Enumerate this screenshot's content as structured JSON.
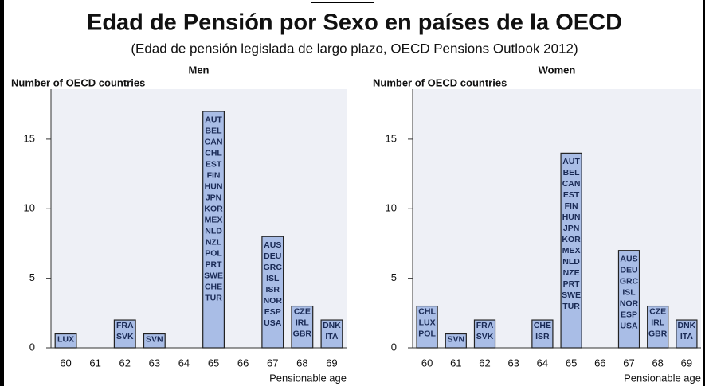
{
  "header": {
    "title": "Edad de Pensión por Sexo en países de la OECD",
    "subtitle": "(Edad de pensión legislada de largo plazo, OECD Pensions Outlook 2012)"
  },
  "chart_data": [
    {
      "type": "bar",
      "title": "Men",
      "ylabel": "Number of OECD countries",
      "xlabel": "Pensionable age",
      "categories": [
        60,
        61,
        62,
        63,
        64,
        65,
        66,
        67,
        68,
        69
      ],
      "values": [
        1,
        0,
        2,
        1,
        0,
        17,
        0,
        8,
        3,
        2
      ],
      "bar_labels": [
        [
          "LUX"
        ],
        [],
        [
          "FRA",
          "SVK"
        ],
        [
          "SVN"
        ],
        [],
        [
          "AUT",
          "BEL",
          "CAN",
          "CHL",
          "EST",
          "FIN",
          "HUN",
          "JPN",
          "KOR",
          "MEX",
          "NLD",
          "NZL",
          "POL",
          "PRT",
          "SWE",
          "CHE",
          "TUR"
        ],
        [],
        [
          "AUS",
          "DEU",
          "GRC",
          "ISL",
          "ISR",
          "NOR",
          "ESP",
          "USA"
        ],
        [
          "CZE",
          "IRL",
          "GBR"
        ],
        [
          "DNK",
          "ITA"
        ]
      ],
      "ylim": [
        0,
        18.6
      ],
      "yticks": [
        0,
        5,
        10,
        15
      ],
      "color": "#a9bde6"
    },
    {
      "type": "bar",
      "title": "Women",
      "ylabel": "Number of OECD countries",
      "xlabel": "Pensionable age",
      "categories": [
        60,
        61,
        62,
        63,
        64,
        65,
        66,
        67,
        68,
        69
      ],
      "values": [
        3,
        1,
        2,
        0,
        2,
        14,
        0,
        7,
        3,
        2
      ],
      "bar_labels": [
        [
          "CHL",
          "LUX",
          "POL"
        ],
        [
          "SVN"
        ],
        [
          "FRA",
          "SVK"
        ],
        [],
        [
          "CHE",
          "ISR"
        ],
        [
          "AUT",
          "BEL",
          "CAN",
          "EST",
          "FIN",
          "HUN",
          "JPN",
          "KOR",
          "MEX",
          "NLD",
          "NZE",
          "PRT",
          "SWE",
          "TUR"
        ],
        [],
        [
          "AUS",
          "DEU",
          "GRC",
          "ISL",
          "NOR",
          "ESP",
          "USA"
        ],
        [
          "CZE",
          "IRL",
          "GBR"
        ],
        [
          "DNK",
          "ITA"
        ]
      ],
      "ylim": [
        0,
        18.6
      ],
      "yticks": [
        0,
        5,
        10,
        15
      ],
      "color": "#a9bde6"
    }
  ]
}
